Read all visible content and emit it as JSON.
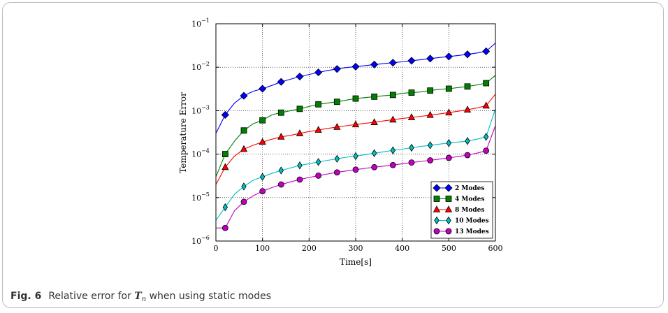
{
  "figure": {
    "caption_label": "Fig. 6",
    "caption_pre": "Relative error for ",
    "caption_symbol": "T",
    "caption_sub": "n",
    "caption_post": " when using static modes"
  },
  "chart_data": {
    "type": "line",
    "xlabel": "Time[s]",
    "ylabel": "Temperature Error",
    "xlim": [
      0,
      600
    ],
    "ylim": [
      1e-06,
      0.1
    ],
    "yscale": "log",
    "grid": true,
    "x_ticks": [
      "0",
      "100",
      "200",
      "300",
      "400",
      "500",
      "600"
    ],
    "y_ticks": [
      {
        "base": "10",
        "exp": "−6"
      },
      {
        "base": "10",
        "exp": "−5"
      },
      {
        "base": "10",
        "exp": "−4"
      },
      {
        "base": "10",
        "exp": "−3"
      },
      {
        "base": "10",
        "exp": "−2"
      },
      {
        "base": "10",
        "exp": "−1"
      }
    ],
    "legend_position": "bottom-right",
    "series": [
      {
        "name": "2 Modes",
        "color": "#0000ff",
        "marker": "diamond",
        "x": [
          0,
          20,
          40,
          60,
          80,
          100,
          120,
          140,
          160,
          180,
          200,
          220,
          240,
          260,
          280,
          300,
          320,
          340,
          360,
          380,
          400,
          420,
          440,
          460,
          480,
          500,
          520,
          540,
          560,
          580,
          600
        ],
        "y": [
          0.0003,
          0.0008,
          0.0015,
          0.0022,
          0.0028,
          0.0032,
          0.0038,
          0.0046,
          0.0053,
          0.0061,
          0.0068,
          0.0076,
          0.0084,
          0.0091,
          0.0098,
          0.0103,
          0.0109,
          0.0115,
          0.0121,
          0.0127,
          0.0133,
          0.0141,
          0.0149,
          0.0158,
          0.0167,
          0.0176,
          0.0186,
          0.0198,
          0.0212,
          0.0232,
          0.036
        ]
      },
      {
        "name": "4 Modes",
        "color": "#007f00",
        "marker": "square",
        "x": [
          0,
          20,
          40,
          60,
          80,
          100,
          120,
          140,
          160,
          180,
          200,
          220,
          240,
          260,
          280,
          300,
          320,
          340,
          360,
          380,
          400,
          420,
          440,
          460,
          480,
          500,
          520,
          540,
          560,
          580,
          600
        ],
        "y": [
          3e-05,
          0.0001,
          0.0002,
          0.00035,
          0.0005,
          0.0006,
          0.0008,
          0.0009,
          0.001,
          0.0011,
          0.00125,
          0.0014,
          0.0015,
          0.0016,
          0.00175,
          0.0019,
          0.002,
          0.0021,
          0.0022,
          0.0023,
          0.0025,
          0.0026,
          0.0027,
          0.0029,
          0.0031,
          0.0032,
          0.0034,
          0.0036,
          0.0039,
          0.0043,
          0.0065
        ]
      },
      {
        "name": "8 Modes",
        "color": "#ff0000",
        "marker": "triangle",
        "x": [
          0,
          20,
          40,
          60,
          80,
          100,
          120,
          140,
          160,
          180,
          200,
          220,
          240,
          260,
          280,
          300,
          320,
          340,
          360,
          380,
          400,
          420,
          440,
          460,
          480,
          500,
          520,
          540,
          560,
          580,
          600
        ],
        "y": [
          2e-05,
          5e-05,
          9e-05,
          0.00013,
          0.00016,
          0.00019,
          0.00022,
          0.00025,
          0.00027,
          0.0003,
          0.00033,
          0.00036,
          0.00039,
          0.00042,
          0.00045,
          0.00048,
          0.00051,
          0.00054,
          0.00058,
          0.00062,
          0.00066,
          0.0007,
          0.00074,
          0.00079,
          0.00084,
          0.0009,
          0.00097,
          0.00105,
          0.00115,
          0.0013,
          0.0024
        ]
      },
      {
        "name": "10 Modes",
        "color": "#00bfbf",
        "marker": "thin-diamond",
        "x": [
          0,
          20,
          40,
          60,
          80,
          100,
          120,
          140,
          160,
          180,
          200,
          220,
          240,
          260,
          280,
          300,
          320,
          340,
          360,
          380,
          400,
          420,
          440,
          460,
          480,
          500,
          520,
          540,
          560,
          580,
          600
        ],
        "y": [
          3e-06,
          6e-06,
          1.2e-05,
          1.8e-05,
          2.5e-05,
          3e-05,
          3.6e-05,
          4.2e-05,
          4.8e-05,
          5.5e-05,
          6e-05,
          6.6e-05,
          7.2e-05,
          7.8e-05,
          8.5e-05,
          9e-05,
          9.7e-05,
          0.000105,
          0.000113,
          0.000122,
          0.00013,
          0.00014,
          0.00015,
          0.00016,
          0.00017,
          0.00018,
          0.00019,
          0.0002,
          0.00022,
          0.00025,
          0.0011
        ]
      },
      {
        "name": "13 Modes",
        "color": "#bf00bf",
        "marker": "circle",
        "x": [
          0,
          20,
          40,
          60,
          80,
          100,
          120,
          140,
          160,
          180,
          200,
          220,
          240,
          260,
          280,
          300,
          320,
          340,
          360,
          380,
          400,
          420,
          440,
          460,
          480,
          500,
          520,
          540,
          560,
          580,
          600
        ],
        "y": [
          2e-06,
          2e-06,
          5e-06,
          8e-06,
          1.1e-05,
          1.4e-05,
          1.7e-05,
          2e-05,
          2.3e-05,
          2.6e-05,
          2.9e-05,
          3.2e-05,
          3.5e-05,
          3.8e-05,
          4.1e-05,
          4.4e-05,
          4.7e-05,
          5e-05,
          5.3e-05,
          5.6e-05,
          6e-05,
          6.4e-05,
          6.8e-05,
          7.2e-05,
          7.7e-05,
          8.2e-05,
          8.8e-05,
          9.5e-05,
          0.000105,
          0.00012,
          0.00045
        ]
      }
    ]
  }
}
